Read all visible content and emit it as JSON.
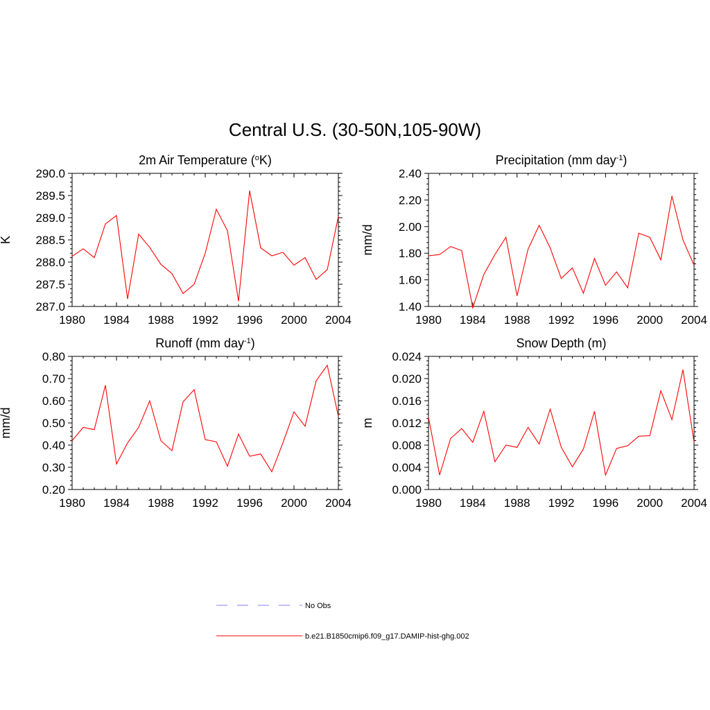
{
  "figure": {
    "title": "Central U.S. (30-50N,105-90W)"
  },
  "legend": {
    "placement": "bottom-center",
    "entries": [
      {
        "label": "No Obs",
        "color": "#9999ff",
        "style": "dashed"
      },
      {
        "label": "b.e21.B1850cmip6.f09_g17.DAMIP-hist-ghg.002",
        "color": "#ff0000",
        "style": "solid"
      }
    ]
  },
  "chart_data": [
    {
      "type": "line",
      "title": "2m Air Temperature (",
      "title_sup": "o",
      "title_after": "K)",
      "ylabel": "K",
      "xlim": [
        1980,
        2004
      ],
      "xticks": [
        1980,
        1984,
        1988,
        1992,
        1996,
        2000,
        2004
      ],
      "ylim": [
        287.0,
        290.0
      ],
      "yticks": [
        "287.0",
        "287.5",
        "288.0",
        "288.5",
        "289.0",
        "289.5",
        "290.0"
      ],
      "color": "#ff0000",
      "x": [
        1980,
        1981,
        1982,
        1983,
        1984,
        1985,
        1986,
        1987,
        1988,
        1989,
        1990,
        1991,
        1992,
        1993,
        1994,
        1995,
        1996,
        1997,
        1998,
        1999,
        2000,
        2001,
        2002,
        2003,
        2004
      ],
      "y": [
        288.13,
        288.3,
        288.1,
        288.86,
        289.05,
        287.17,
        288.63,
        288.33,
        287.95,
        287.74,
        287.29,
        287.5,
        288.2,
        289.19,
        288.71,
        287.12,
        289.61,
        288.32,
        288.14,
        288.22,
        287.93,
        288.1,
        287.61,
        287.83,
        289.03
      ]
    },
    {
      "type": "line",
      "title": "Precipitation (mm day",
      "title_sup": "-1",
      "title_after": ")",
      "ylabel": "mm/d",
      "xlim": [
        1980,
        2004
      ],
      "xticks": [
        1980,
        1984,
        1988,
        1992,
        1996,
        2000,
        2004
      ],
      "ylim": [
        1.4,
        2.4
      ],
      "yticks": [
        "1.40",
        "1.60",
        "1.80",
        "2.00",
        "2.20",
        "2.40"
      ],
      "color": "#ff0000",
      "x": [
        1980,
        1981,
        1982,
        1983,
        1984,
        1985,
        1986,
        1987,
        1988,
        1989,
        1990,
        1991,
        1992,
        1993,
        1994,
        1995,
        1996,
        1997,
        1998,
        1999,
        2000,
        2001,
        2002,
        2003,
        2004
      ],
      "y": [
        1.78,
        1.79,
        1.85,
        1.82,
        1.39,
        1.64,
        1.79,
        1.92,
        1.48,
        1.83,
        2.01,
        1.84,
        1.61,
        1.69,
        1.5,
        1.76,
        1.56,
        1.66,
        1.54,
        1.95,
        1.92,
        1.75,
        2.23,
        1.9,
        1.71
      ]
    },
    {
      "type": "line",
      "title": "Runoff (mm day",
      "title_sup": "-1",
      "title_after": ")",
      "ylabel": "mm/d",
      "xlim": [
        1980,
        2004
      ],
      "xticks": [
        1980,
        1984,
        1988,
        1992,
        1996,
        2000,
        2004
      ],
      "ylim": [
        0.2,
        0.8
      ],
      "yticks": [
        "0.20",
        "0.30",
        "0.40",
        "0.50",
        "0.60",
        "0.70",
        "0.80"
      ],
      "color": "#ff0000",
      "x": [
        1980,
        1981,
        1982,
        1983,
        1984,
        1985,
        1986,
        1987,
        1988,
        1989,
        1990,
        1991,
        1992,
        1993,
        1994,
        1995,
        1996,
        1997,
        1998,
        1999,
        2000,
        2001,
        2002,
        2003,
        2004
      ],
      "y": [
        0.42,
        0.48,
        0.47,
        0.67,
        0.315,
        0.41,
        0.48,
        0.6,
        0.42,
        0.375,
        0.595,
        0.65,
        0.425,
        0.415,
        0.305,
        0.45,
        0.35,
        0.36,
        0.28,
        0.41,
        0.55,
        0.485,
        0.69,
        0.76,
        0.53
      ]
    },
    {
      "type": "line",
      "title": "Snow Depth (m)",
      "title_sup": "",
      "title_after": "",
      "ylabel": "m",
      "xlim": [
        1980,
        2004
      ],
      "xticks": [
        1980,
        1984,
        1988,
        1992,
        1996,
        2000,
        2004
      ],
      "ylim": [
        0.0,
        0.024
      ],
      "yticks": [
        "0.000",
        "0.004",
        "0.008",
        "0.012",
        "0.016",
        "0.020",
        "0.024"
      ],
      "color": "#ff0000",
      "x": [
        1980,
        1981,
        1982,
        1983,
        1984,
        1985,
        1986,
        1987,
        1988,
        1989,
        1990,
        1991,
        1992,
        1993,
        1994,
        1995,
        1996,
        1997,
        1998,
        1999,
        2000,
        2001,
        2002,
        2003,
        2004
      ],
      "y": [
        0.013,
        0.0026,
        0.0092,
        0.011,
        0.0085,
        0.0141,
        0.005,
        0.008,
        0.0076,
        0.0112,
        0.0082,
        0.0145,
        0.0076,
        0.0041,
        0.0073,
        0.0141,
        0.0026,
        0.0074,
        0.0079,
        0.0096,
        0.0097,
        0.0178,
        0.0126,
        0.0216,
        0.0085
      ]
    }
  ]
}
